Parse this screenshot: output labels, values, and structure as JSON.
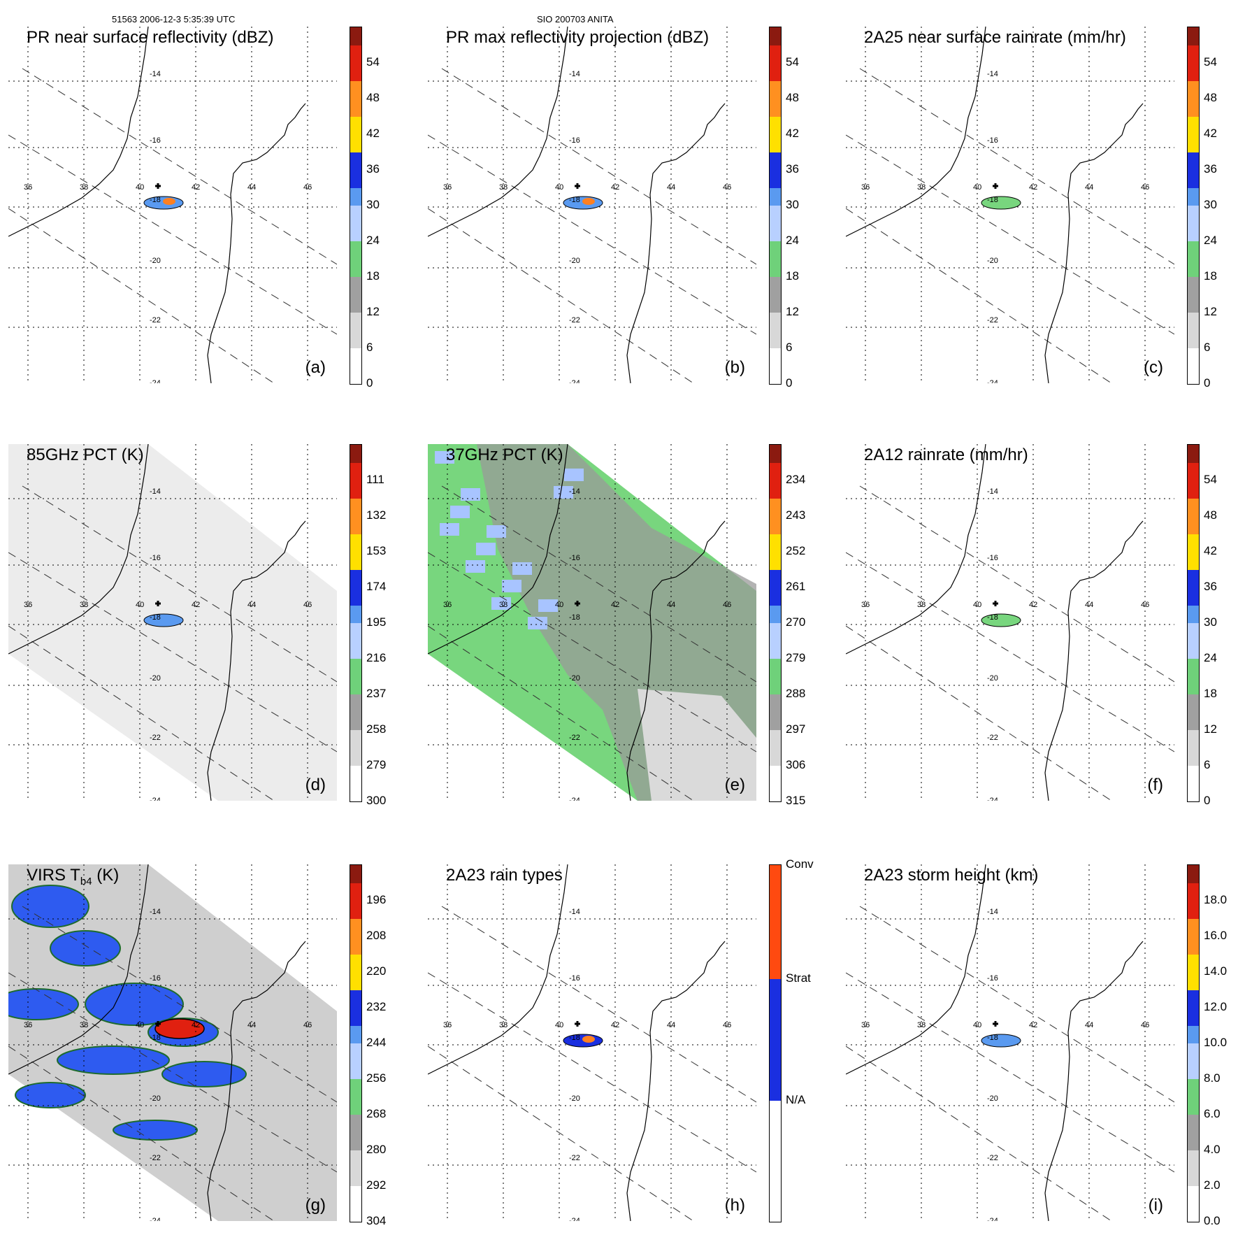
{
  "header": {
    "left": "51563 2006-12-3 5:35:39 UTC",
    "center": "SIO 200703 ANITA"
  },
  "map": {
    "lon_labels": [
      "36",
      "38",
      "40",
      "42",
      "44",
      "46"
    ],
    "lat_labels": [
      "-14",
      "-16",
      "-18",
      "-20",
      "-22",
      "-24"
    ]
  },
  "panels": [
    {
      "id": "a",
      "title": "PR near surface reflectivity (dBZ)",
      "label": "(a)",
      "bg": "none",
      "ticks": [
        "0",
        "6",
        "12",
        "18",
        "24",
        "30",
        "36",
        "42",
        "48",
        "54"
      ],
      "colors": {
        "low": "#ffffff",
        "mid": "#6fd17a",
        "high": "#8b1a10"
      }
    },
    {
      "id": "b",
      "title": "PR max reflectivity projection (dBZ)",
      "label": "(b)",
      "bg": "none",
      "ticks": [
        "0",
        "6",
        "12",
        "18",
        "24",
        "30",
        "36",
        "42",
        "48",
        "54"
      ],
      "colors": {
        "low": "#ffffff",
        "mid": "#6fd17a",
        "high": "#8b1a10"
      }
    },
    {
      "id": "c",
      "title": "2A25 near surface rainrate (mm/hr)",
      "label": "(c)",
      "bg": "none",
      "ticks": [
        "0",
        "6",
        "12",
        "18",
        "24",
        "30",
        "36",
        "42",
        "48",
        "54"
      ],
      "colors": {
        "low": "#6fd17a",
        "mid": "#1a2fe0",
        "high": "#8b1a10"
      }
    },
    {
      "id": "d",
      "title": "85GHz PCT (K)",
      "label": "(d)",
      "bg": "gray",
      "ticks": [
        "300",
        "279",
        "258",
        "237",
        "216",
        "195",
        "174",
        "153",
        "132",
        "111"
      ],
      "colors": {
        "low": "#ffffff",
        "mid": "#6fd17a",
        "high": "#8b1a10"
      }
    },
    {
      "id": "e",
      "title": "37GHz PCT (K)",
      "label": "(e)",
      "bg": "green",
      "ticks": [
        "315",
        "306",
        "297",
        "288",
        "279",
        "270",
        "261",
        "252",
        "243",
        "234"
      ],
      "colors": {
        "low": "#ffffff",
        "mid": "#6fd17a",
        "high": "#8b1a10"
      }
    },
    {
      "id": "f",
      "title": "2A12 rainrate (mm/hr)",
      "label": "(f)",
      "bg": "none",
      "ticks": [
        "0",
        "6",
        "12",
        "18",
        "24",
        "30",
        "36",
        "42",
        "48",
        "54"
      ],
      "colors": {
        "low": "#6fd17a",
        "mid": "#1a2fe0",
        "high": "#8b1a10"
      }
    },
    {
      "id": "g",
      "title": "VIRS T",
      "title_sub": "b4",
      "title_end": " (K)",
      "label": "(g)",
      "bg": "virs",
      "ticks": [
        "304",
        "292",
        "280",
        "268",
        "256",
        "244",
        "232",
        "220",
        "208",
        "196"
      ],
      "colors": {
        "low": "#ffffff",
        "mid": "#6fd17a",
        "high": "#8b1a10"
      }
    },
    {
      "id": "h",
      "title": "2A23 rain types",
      "label": "(h)",
      "bg": "none",
      "ticks": [
        "N/A",
        "Strat",
        "Conv"
      ],
      "colors": {
        "low": "#ffffff",
        "mid": "#1a2fe0",
        "high": "#ff4a10"
      }
    },
    {
      "id": "i",
      "title": "2A23 storm height (km)",
      "label": "(i)",
      "bg": "none",
      "ticks": [
        "0.0",
        "2.0",
        "4.0",
        "6.0",
        "8.0",
        "10.0",
        "12.0",
        "14.0",
        "16.0",
        "18.0"
      ],
      "colors": {
        "low": "#ffffff",
        "mid": "#6fd17a",
        "high": "#8b1a10"
      }
    }
  ]
}
